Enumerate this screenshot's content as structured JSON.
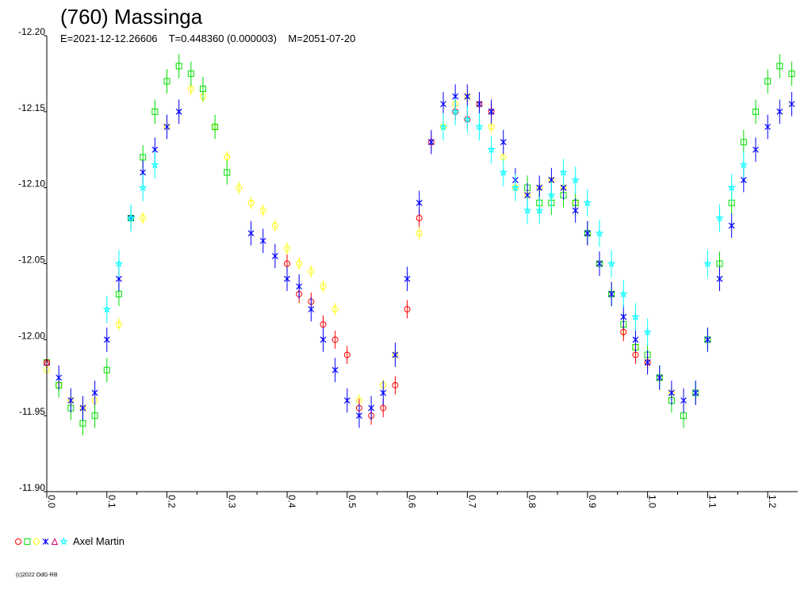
{
  "chart_data": {
    "type": "scatter",
    "title": "(760) Massinga",
    "subtitle": "E=2021-12-12.26606    T=0.448360 (0.000003)    M=2051-07-20",
    "xlim": [
      0.0,
      1.25
    ],
    "ylim": [
      -12.2,
      -11.9
    ],
    "y_inverted": true,
    "x_ticks": [
      "0.0",
      "0.1",
      "0.2",
      "0.3",
      "0.4",
      "0.5",
      "0.6",
      "0.7",
      "0.8",
      "0.9",
      "1.0",
      "1.1",
      "1.2"
    ],
    "x_tick_values": [
      0.0,
      0.1,
      0.2,
      0.3,
      0.4,
      0.5,
      0.6,
      0.7,
      0.8,
      0.9,
      1.0,
      1.1,
      1.2
    ],
    "y_ticks": [
      "-12.20",
      "-12.15",
      "-12.10",
      "-12.05",
      "-12.00",
      "-11.95",
      "-11.90"
    ],
    "y_tick_values": [
      -12.2,
      -12.15,
      -12.1,
      -12.05,
      -12.0,
      -11.95,
      -11.9
    ],
    "grid": false,
    "legend": {
      "placement": "bottom-left",
      "markers": [
        {
          "symbol": "circle",
          "color": "#ff0000"
        },
        {
          "symbol": "square",
          "color": "#00dd00"
        },
        {
          "symbol": "circle",
          "color": "#ffff00"
        },
        {
          "symbol": "x",
          "color": "#0000ff"
        },
        {
          "symbol": "triangle",
          "color": "#cc0066"
        },
        {
          "symbol": "star",
          "color": "#00ffff"
        }
      ],
      "label": "Axel Martin"
    },
    "series": [
      {
        "color": "#ffff00",
        "symbol": "circle",
        "error": 0.004,
        "x": [
          0.0,
          0.02,
          0.04,
          0.06,
          0.08,
          0.12,
          0.16,
          0.2,
          0.24,
          0.26,
          0.28,
          0.3,
          0.32,
          0.34,
          0.36,
          0.38,
          0.4,
          0.42,
          0.44,
          0.46,
          0.48,
          0.52,
          0.56,
          0.58,
          0.62,
          0.66,
          0.68,
          0.7,
          0.72,
          0.74,
          0.76,
          0.78,
          0.8,
          0.82,
          0.84,
          0.86,
          0.88,
          0.9,
          0.92,
          0.94,
          0.96,
          0.98,
          1.0,
          1.02,
          1.04
        ],
        "y": [
          -11.98,
          -11.97,
          -11.96,
          -11.955,
          -11.96,
          -12.01,
          -12.08,
          -12.14,
          -12.165,
          -12.16,
          -12.14,
          -12.12,
          -12.1,
          -12.09,
          -12.085,
          -12.075,
          -12.06,
          -12.05,
          -12.045,
          -12.035,
          -12.02,
          -11.96,
          -11.97,
          -11.99,
          -12.07,
          -12.14,
          -12.155,
          -12.16,
          -12.155,
          -12.14,
          -12.12,
          -12.1,
          -12.095,
          -12.1,
          -12.105,
          -12.1,
          -12.09,
          -12.07,
          -12.05,
          -12.03,
          -12.005,
          -11.995,
          -11.985,
          -11.975,
          -11.965
        ]
      },
      {
        "color": "#00dd00",
        "symbol": "square",
        "error": 0.008,
        "x": [
          0.0,
          0.02,
          0.04,
          0.06,
          0.08,
          0.1,
          0.12,
          0.14,
          0.16,
          0.18,
          0.2,
          0.22,
          0.24,
          0.26,
          0.28,
          0.3,
          0.8,
          0.82,
          0.84,
          0.86,
          0.88,
          0.9,
          0.92,
          0.94,
          0.96,
          0.98,
          1.0,
          1.02,
          1.04,
          1.06,
          1.08,
          1.1,
          1.12,
          1.14,
          1.16,
          1.18,
          1.2,
          1.22,
          1.24
        ],
        "y": [
          -11.985,
          -11.97,
          -11.955,
          -11.945,
          -11.95,
          -11.98,
          -12.03,
          -12.08,
          -12.12,
          -12.15,
          -12.17,
          -12.18,
          -12.175,
          -12.165,
          -12.14,
          -12.11,
          -12.1,
          -12.09,
          -12.09,
          -12.095,
          -12.09,
          -12.07,
          -12.05,
          -12.03,
          -12.01,
          -11.995,
          -11.99,
          -11.975,
          -11.96,
          -11.95,
          -11.965,
          -12.0,
          -12.05,
          -12.09,
          -12.13,
          -12.15,
          -12.17,
          -12.18,
          -12.175
        ]
      },
      {
        "color": "#ff0000",
        "symbol": "circle",
        "error": 0.006,
        "x": [
          0.0,
          0.4,
          0.42,
          0.44,
          0.46,
          0.48,
          0.5,
          0.52,
          0.54,
          0.56,
          0.58,
          0.6,
          0.62,
          0.64,
          0.68,
          0.7,
          0.72,
          0.74,
          0.96,
          0.98,
          1.0
        ],
        "y": [
          -11.985,
          -12.05,
          -12.03,
          -12.025,
          -12.01,
          -12.0,
          -11.99,
          -11.955,
          -11.95,
          -11.955,
          -11.97,
          -12.02,
          -12.08,
          -12.13,
          -12.15,
          -12.145,
          -12.155,
          -12.15,
          -12.005,
          -11.99,
          -11.985
        ]
      },
      {
        "color": "#0000ff",
        "symbol": "x",
        "error": 0.008,
        "x": [
          0.02,
          0.04,
          0.06,
          0.08,
          0.1,
          0.12,
          0.14,
          0.16,
          0.18,
          0.2,
          0.22,
          0.34,
          0.36,
          0.38,
          0.4,
          0.42,
          0.44,
          0.46,
          0.48,
          0.5,
          0.52,
          0.54,
          0.56,
          0.58,
          0.6,
          0.62,
          0.64,
          0.66,
          0.68,
          0.7,
          0.72,
          0.74,
          0.76,
          0.78,
          0.8,
          0.82,
          0.84,
          0.86,
          0.88,
          0.9,
          0.92,
          0.94,
          0.96,
          0.98,
          1.0,
          1.02,
          1.04,
          1.06,
          1.08,
          1.1,
          1.12,
          1.14,
          1.16,
          1.18,
          1.2,
          1.22,
          1.24
        ],
        "y": [
          -11.975,
          -11.96,
          -11.955,
          -11.965,
          -12.0,
          -12.04,
          -12.08,
          -12.11,
          -12.125,
          -12.14,
          -12.15,
          -12.07,
          -12.065,
          -12.055,
          -12.04,
          -12.035,
          -12.02,
          -12.0,
          -11.98,
          -11.96,
          -11.95,
          -11.955,
          -11.965,
          -11.99,
          -12.04,
          -12.09,
          -12.13,
          -12.155,
          -12.16,
          -12.16,
          -12.155,
          -12.15,
          -12.13,
          -12.105,
          -12.095,
          -12.1,
          -12.105,
          -12.1,
          -12.085,
          -12.07,
          -12.05,
          -12.03,
          -12.015,
          -12.0,
          -11.985,
          -11.975,
          -11.965,
          -11.96,
          -11.965,
          -12.0,
          -12.04,
          -12.075,
          -12.105,
          -12.125,
          -12.14,
          -12.15,
          -12.155
        ]
      },
      {
        "color": "#00ffff",
        "symbol": "star",
        "error": 0.009,
        "x": [
          0.1,
          0.12,
          0.14,
          0.16,
          0.18,
          0.66,
          0.68,
          0.7,
          0.72,
          0.74,
          0.76,
          0.78,
          0.8,
          0.82,
          0.84,
          0.86,
          0.88,
          0.9,
          0.92,
          0.94,
          0.96,
          0.98,
          1.0,
          1.1,
          1.12,
          1.14,
          1.16
        ],
        "y": [
          -12.02,
          -12.05,
          -12.08,
          -12.1,
          -12.115,
          -12.14,
          -12.15,
          -12.145,
          -12.14,
          -12.125,
          -12.11,
          -12.1,
          -12.085,
          -12.085,
          -12.095,
          -12.11,
          -12.105,
          -12.09,
          -12.07,
          -12.05,
          -12.03,
          -12.015,
          -12.005,
          -12.05,
          -12.08,
          -12.1,
          -12.115
        ]
      },
      {
        "color": "#cc0066",
        "symbol": "triangle",
        "error": 0.004,
        "x": [
          0.0
        ],
        "y": [
          -11.985
        ]
      }
    ]
  },
  "copyright": "(c)2022 OdG-RB"
}
